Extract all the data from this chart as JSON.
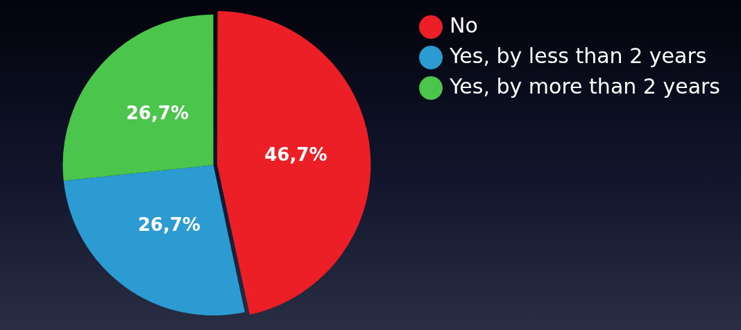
{
  "chart_data": {
    "type": "pie",
    "categories": [
      "No",
      "Yes, by less than 2 years",
      "Yes, by more than 2 years"
    ],
    "values": [
      46.7,
      26.7,
      26.7
    ],
    "colors": [
      "#ec1f27",
      "#2b9bd1",
      "#4bc54b"
    ],
    "value_labels": [
      "46,7%",
      "26,7%",
      "26,7%"
    ],
    "legend": "right"
  }
}
